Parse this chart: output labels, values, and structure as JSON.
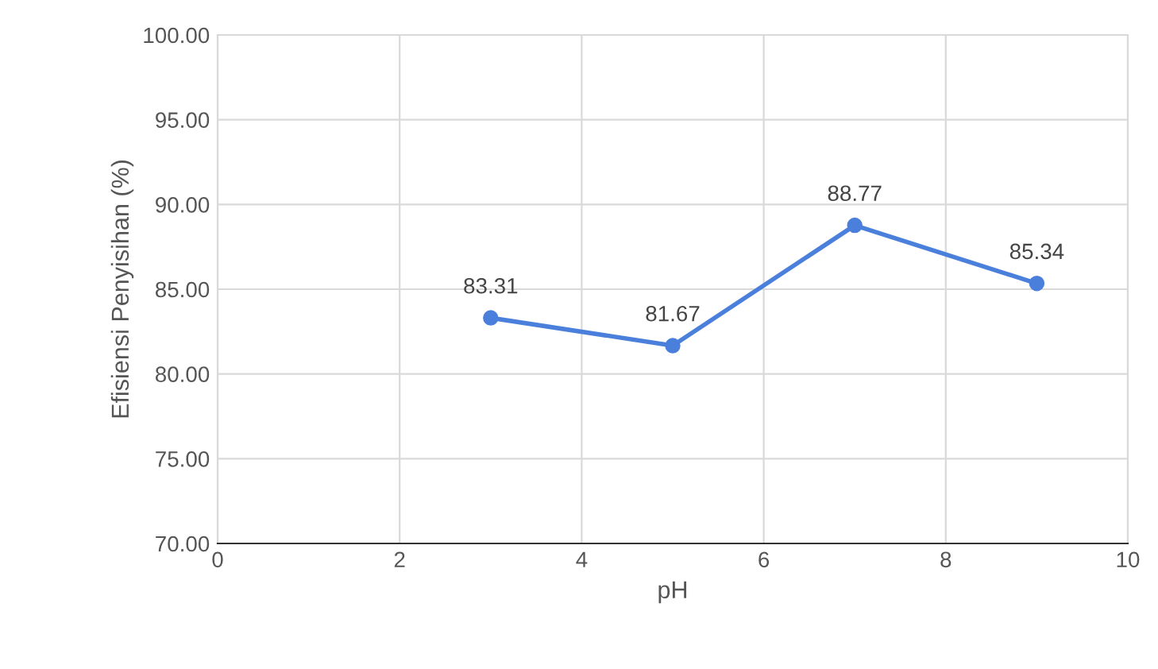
{
  "chart_data": {
    "type": "line",
    "xlabel": "pH",
    "ylabel": "Efisiensi Penyisihan (%)",
    "x": [
      3,
      5,
      7,
      9
    ],
    "series": [
      {
        "color": "#4a7fdc",
        "values": [
          83.31,
          81.67,
          88.77,
          85.34
        ],
        "value_labels": [
          "83.31",
          "81.67",
          "88.77",
          "85.34"
        ]
      }
    ],
    "xlim": [
      0,
      10
    ],
    "xticks": [
      0,
      2,
      4,
      6,
      8,
      10
    ],
    "ylim": [
      70,
      100
    ],
    "yticks": [
      {
        "value": 70,
        "label": "70.00"
      },
      {
        "value": 75,
        "label": "75.00"
      },
      {
        "value": 80,
        "label": "80.00"
      },
      {
        "value": 85,
        "label": "85.00"
      },
      {
        "value": 90,
        "label": "90.00"
      },
      {
        "value": 95,
        "label": "95.00"
      },
      {
        "value": 100,
        "label": "100.00"
      }
    ],
    "grid": true,
    "marker": "circle",
    "line_style": "solid"
  }
}
